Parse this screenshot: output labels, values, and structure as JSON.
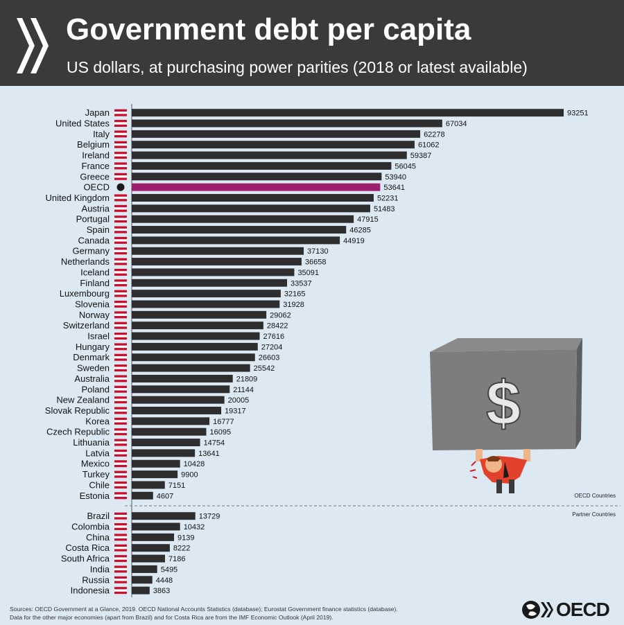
{
  "header": {
    "title": "Government debt per capita",
    "subtitle": "US dollars, at purchasing power parities (2018 or latest available)"
  },
  "chart_data": {
    "type": "bar",
    "orientation": "horizontal",
    "title": "Government debt per capita",
    "subtitle": "US dollars, at purchasing power parities (2018 or latest available)",
    "xlim": [
      0,
      100000
    ],
    "grid": false,
    "groups": [
      {
        "name": "OECD Countries",
        "categories": [
          "Japan",
          "United States",
          "Italy",
          "Belgium",
          "Ireland",
          "France",
          "Greece",
          "OECD",
          "United Kingdom",
          "Austria",
          "Portugal",
          "Spain",
          "Canada",
          "Germany",
          "Netherlands",
          "Iceland",
          "Finland",
          "Luxembourg",
          "Slovenia",
          "Norway",
          "Switzerland",
          "Israel",
          "Hungary",
          "Denmark",
          "Sweden",
          "Australia",
          "Poland",
          "New Zealand",
          "Slovak Republic",
          "Korea",
          "Czech Republic",
          "Lithuania",
          "Latvia",
          "Mexico",
          "Turkey",
          "Chile",
          "Estonia"
        ],
        "values": [
          93251,
          67034,
          62278,
          61062,
          59387,
          56045,
          53940,
          53641,
          52231,
          51483,
          47915,
          46285,
          44919,
          37130,
          36658,
          35091,
          33537,
          32165,
          31928,
          29062,
          28422,
          27616,
          27204,
          26603,
          25542,
          21809,
          21144,
          20005,
          19317,
          16777,
          16095,
          14754,
          13641,
          10428,
          9900,
          7151,
          4607
        ]
      },
      {
        "name": "Partner Countries",
        "categories": [
          "Brazil",
          "Colombia",
          "China",
          "Costa Rica",
          "South Africa",
          "India",
          "Russia",
          "Indonesia"
        ],
        "values": [
          13729,
          10432,
          9139,
          8222,
          7186,
          5495,
          4448,
          3863
        ]
      }
    ],
    "highlight": "OECD",
    "colors": {
      "bar": "#2e2e2e",
      "highlight": "#9b1f6e",
      "background": "#dce9f3",
      "header": "#3a3a3a"
    }
  },
  "footer": {
    "sources": "Sources: OECD Government at a Glance, 2019. OECD National Accounts Statistics (database); Eurostat Government finance statistics (database).",
    "note": "Data for the other major economies (apart from Brazil) and for Costa Rica are from the IMF Economic Outlook (April 2019).",
    "logo_text": "OECD"
  },
  "illustration": {
    "symbol": "$",
    "icon": "person-crushed-by-debt-box-icon"
  }
}
